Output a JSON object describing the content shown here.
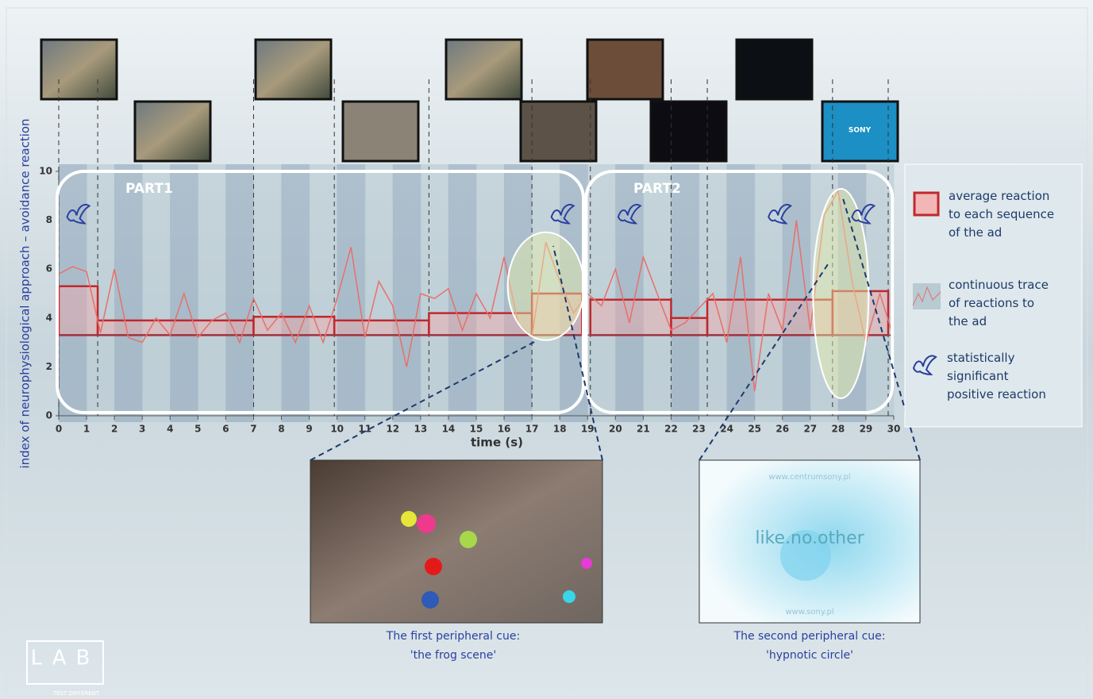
{
  "chart_data": {
    "type": "line",
    "y_label": "index of neurophysiological approach – avoidance reaction",
    "x_label": "time (s)",
    "xlim": [
      0,
      30
    ],
    "xticks": [
      0,
      1,
      2,
      3,
      4,
      5,
      6,
      7,
      8,
      9,
      10,
      11,
      12,
      13,
      14,
      15,
      16,
      17,
      18,
      19,
      20,
      21,
      22,
      23,
      24,
      25,
      26,
      27,
      28,
      29,
      30
    ],
    "ylim": [
      0,
      10
    ],
    "yticks": [
      0,
      2,
      4,
      6,
      8,
      10
    ],
    "annotations": [
      "PART1",
      "PART2"
    ],
    "steps": {
      "name": "average reaction to each sequence of the ad",
      "color": "#c0282d",
      "start": [
        0,
        1.4,
        7,
        9.9,
        13.3,
        17,
        19.1,
        22,
        23.3,
        27.8
      ],
      "end": [
        1.4,
        7,
        9.9,
        13.3,
        17,
        18.8,
        22,
        23.3,
        27.8,
        29.8
      ],
      "values": [
        5.3,
        3.9,
        4.05,
        3.9,
        4.2,
        5.0,
        4.75,
        4.0,
        4.75,
        5.1
      ],
      "baseline": 3.3
    },
    "trace": {
      "name": "continuous trace of reactions to the ad",
      "color": "#e8706a",
      "x": [
        0,
        0.5,
        1,
        1.5,
        2,
        2.5,
        3,
        3.5,
        4,
        4.5,
        5,
        5.5,
        6,
        6.5,
        7,
        7.5,
        8,
        8.5,
        9,
        9.5,
        10,
        10.5,
        11,
        11.5,
        12,
        12.5,
        13,
        13.5,
        14,
        14.5,
        15,
        15.5,
        16,
        16.5,
        17,
        17.5,
        18,
        18.5,
        19,
        19.5,
        20,
        20.5,
        21,
        21.5,
        22,
        22.5,
        23,
        23.5,
        24,
        24.5,
        25,
        25.5,
        26,
        26.5,
        27,
        27.5,
        28,
        28.5,
        29,
        29.5,
        30
      ],
      "values": [
        5.8,
        6.1,
        5.9,
        3.4,
        6.0,
        3.2,
        3.0,
        4.0,
        3.3,
        5.0,
        3.2,
        3.9,
        4.2,
        3.0,
        4.8,
        3.5,
        4.2,
        3.0,
        4.5,
        3.0,
        4.8,
        6.9,
        3.2,
        5.5,
        4.5,
        2.0,
        5.0,
        4.8,
        5.2,
        3.5,
        5.0,
        4.0,
        6.5,
        3.8,
        3.2,
        7.1,
        5.5,
        4.2,
        5.0,
        4.5,
        6.0,
        3.8,
        6.5,
        5.0,
        3.5,
        3.8,
        4.4,
        5.0,
        3.0,
        6.5,
        1.0,
        5.0,
        3.5,
        8.0,
        3.5,
        8.2,
        9.2,
        5.5,
        3.0,
        5.0,
        3.2
      ]
    },
    "markers": {
      "name": "statistically significant positive reaction",
      "color": "#2a3f9e",
      "x": [
        0.7,
        18.1,
        20.5,
        25.9,
        28.9
      ],
      "y": [
        8.2,
        8.2,
        8.2,
        8.2,
        8.2
      ]
    },
    "insets": [
      {
        "caption": [
          "The first peripheral cue:",
          "'the frog scene'"
        ]
      },
      {
        "caption": [
          "The second peripheral cue:",
          "'hypnotic circle'"
        ],
        "texts": [
          "www.centrumsony.pl",
          "like.no.other",
          "www.sony.pl"
        ]
      }
    ],
    "thumbnail_text": "SONY",
    "logo": {
      "text": "LAB",
      "tagline": "TEST DIFFERENT"
    }
  }
}
